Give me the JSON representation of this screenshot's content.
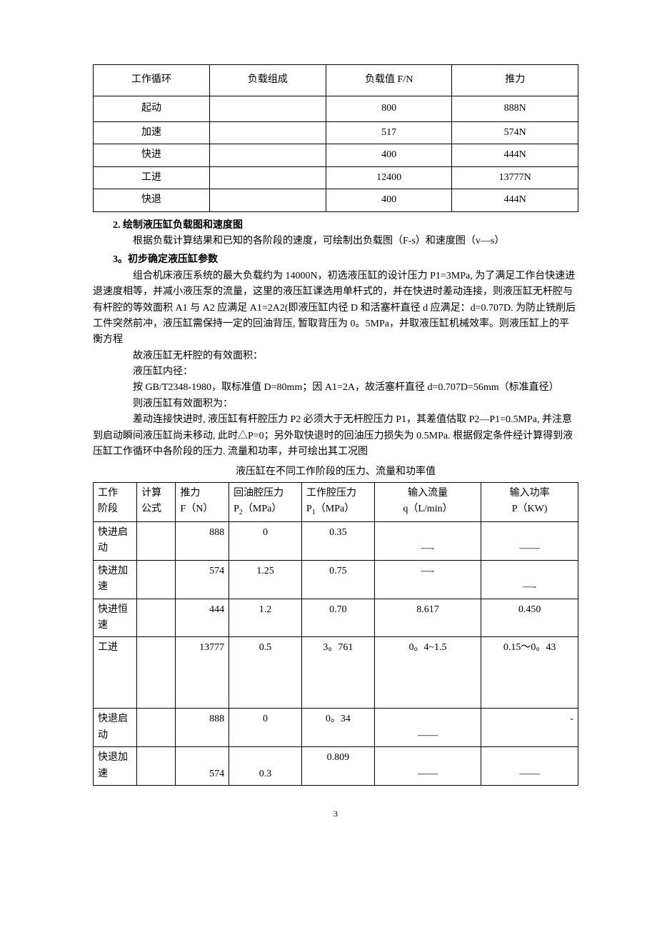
{
  "table1": {
    "headers": [
      "工作循环",
      "负载组成",
      "负载值 F/N",
      "推力"
    ],
    "header_sublabel": "",
    "rows": [
      [
        "起动",
        "",
        "800",
        "888N"
      ],
      [
        "加速",
        "",
        "517",
        "574N"
      ],
      [
        "快进",
        "",
        "400",
        "444N"
      ],
      [
        "工进",
        "",
        "12400",
        "13777N"
      ],
      [
        "快退",
        "",
        "400",
        "444N"
      ]
    ]
  },
  "section2": {
    "heading": "2. 绘制液压缸负载图和速度图",
    "para1": "根据负载计算结果和已知的各阶段的速度，可绘制出负载图（F-s）和速度图（v—s）"
  },
  "section3": {
    "heading": "3。初步确定液压缸参数",
    "para1": "组合机床液压系统的最大负载约为 14000N，初选液压缸的设计压力 P1=3MPa, 为了满足工作台快速进退速度相等，并减小液压泵的流量，这里的液压缸课选用单杆式的，并在快进时差动连接，则液压缸无杆腔与有杆腔的等效面积 A1 与 A2 应满足 A1=2A2(即液压缸内径 D 和活塞杆直径 d 应满足：d=0.707D. 为防止铣削后工件突然前冲，液压缸需保持一定的回油背压, 暂取背压为 0。5MPa，并取液压缸机械效率。则液压缸上的平衡方程",
    "para2": "故液压缸无杆腔的有效面积：",
    "para3": "液压缸内径：",
    "para4": "按 GB/T2348-1980，取标准值 D=80mm；因 A1=2A，故活塞杆直径 d=0.707D=56mm（标准直径）",
    "para5": "则液压缸有效面积为：",
    "para6": "差动连接快进时, 液压缸有杆腔压力 P2 必须大于无杆腔压力 P1，其差值估取 P2—P1=0.5MPa, 并注意到启动瞬间液压缸尚未移动, 此时△P=0；另外取快退时的回油压力损失为 0.5MPa. 根据假定条件经计算得到液压缸工作循环中各阶段的压力. 流量和功率，并可绘出其工况图"
  },
  "table2": {
    "caption": "液压缸在不同工作阶段的压力、流量和功率值",
    "headers": {
      "c1a": "工作",
      "c1b": "阶段",
      "c2a": "计算",
      "c2b": "公式",
      "c3a": "推力",
      "c3b": "F（N）",
      "c4a": "回油腔压力",
      "c4b_pre": "P",
      "c4b_sub": "2",
      "c4b_post": "（MPa）",
      "c5a": "工作腔压力",
      "c5b_pre": "P",
      "c5b_sub": "1",
      "c5b_post": "（MPa）",
      "c6a": "输入流量",
      "c6b": "q（L/min）",
      "c7a": "输入功率",
      "c7b": "P（KW)"
    },
    "rows": [
      {
        "c1": "快进启动",
        "c2": "",
        "c3": "888",
        "c4": "0",
        "c5": "0.35",
        "c6": "—-",
        "c7": "——"
      },
      {
        "c1": "快进加速",
        "c2": "",
        "c3": "574",
        "c4": "1.25",
        "c5": "0.75",
        "c6": "—-",
        "c7": "—-"
      },
      {
        "c1": "快进恒速",
        "c2": "",
        "c3": "444",
        "c4": "1.2",
        "c5": "0.70",
        "c6": "8.617",
        "c7": "0.450"
      },
      {
        "c1": "工进",
        "c2": "",
        "c3": "13777",
        "c4": "0.5",
        "c5": "3。761",
        "c6": "0。4~1.5",
        "c7": "0.15～0。43"
      },
      {
        "c1": "快退启动",
        "c2": "",
        "c3": "888",
        "c4": "0",
        "c5": "0。34",
        "c6": "——",
        "c7": "-"
      },
      {
        "c1": "快退加速",
        "c2": "",
        "c3": "574",
        "c4": "0.3",
        "c5": "0.809",
        "c6": "——",
        "c7": "——"
      }
    ]
  },
  "page_number": "3"
}
